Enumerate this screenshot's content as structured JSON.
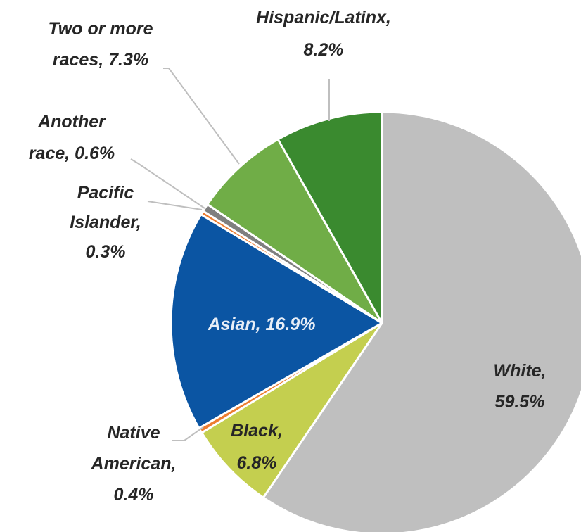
{
  "chart_data": {
    "type": "pie",
    "title": "",
    "start_angle_deg": 0,
    "direction": "clockwise",
    "slices": [
      {
        "category": "White",
        "value": 59.5,
        "value_label": "59.5%",
        "color": "#bfbfbf"
      },
      {
        "category": "Black",
        "value": 6.8,
        "value_label": "6.8%",
        "color": "#c4cf4f"
      },
      {
        "category": "Native American",
        "value": 0.4,
        "value_label": "0.4%",
        "color": "#ed7d31"
      },
      {
        "category": "Asian",
        "value": 16.9,
        "value_label": "16.9%",
        "color": "#0b55a3"
      },
      {
        "category": "Pacific Islander",
        "value": 0.3,
        "value_label": "0.3%",
        "color": "#ed7d31"
      },
      {
        "category": "Another race",
        "value": 0.6,
        "value_label": "0.6%",
        "color": "#7f7f7f"
      },
      {
        "category": "Two or more races",
        "value": 7.3,
        "value_label": "7.3%",
        "color": "#70ad47"
      },
      {
        "category": "Hispanic/Latinx",
        "value": 8.2,
        "value_label": "8.2%",
        "color": "#3a8a2f"
      }
    ],
    "labels": {
      "white": [
        "White,",
        "59.5%"
      ],
      "black": [
        "Black,",
        "6.8%"
      ],
      "native": [
        "Native",
        "American,",
        "0.4%"
      ],
      "asian": [
        "Asian, 16.9%"
      ],
      "pacific": [
        "Pacific",
        "Islander,",
        "0.3%"
      ],
      "another": [
        "Another",
        "race, 0.6%"
      ],
      "two_more": [
        "Two or more",
        "races, 7.3%"
      ],
      "hispanic": [
        "Hispanic/Latinx,",
        "8.2%"
      ]
    },
    "label_colors": {
      "dark": "#262626",
      "light": "#e8eef7"
    }
  }
}
